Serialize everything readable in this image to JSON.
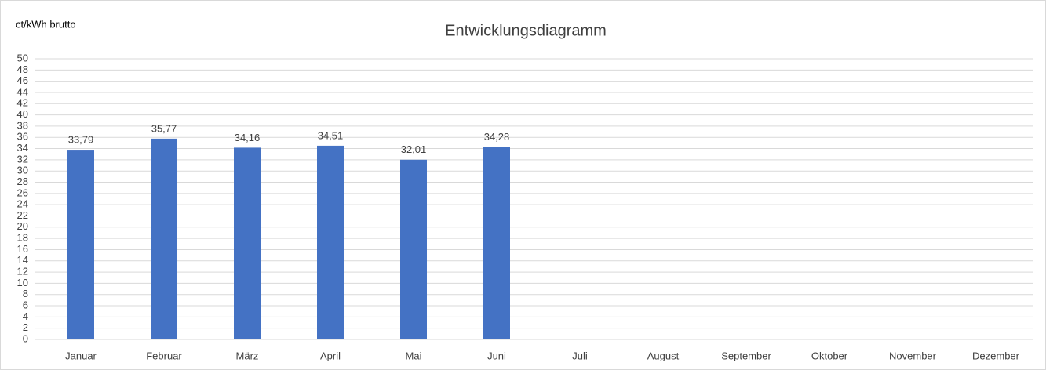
{
  "chart_data": {
    "type": "bar",
    "title": "Entwicklungsdiagramm",
    "y_label": "ct/kWh brutto",
    "categories": [
      "Januar",
      "Februar",
      "März",
      "April",
      "Mai",
      "Juni",
      "Juli",
      "August",
      "September",
      "Oktober",
      "November",
      "Dezember"
    ],
    "values": [
      33.79,
      35.77,
      34.16,
      34.51,
      32.01,
      34.28,
      null,
      null,
      null,
      null,
      null,
      null
    ],
    "value_labels": [
      "33,79",
      "35,77",
      "34,16",
      "34,51",
      "32,01",
      "34,28",
      null,
      null,
      null,
      null,
      null,
      null
    ],
    "color": "#4472c4",
    "ylim": [
      0,
      50
    ],
    "yticks": [
      0,
      2,
      4,
      6,
      8,
      10,
      12,
      14,
      16,
      18,
      20,
      22,
      24,
      26,
      28,
      30,
      32,
      34,
      36,
      38,
      40,
      42,
      44,
      46,
      48,
      50
    ],
    "grid": true
  }
}
